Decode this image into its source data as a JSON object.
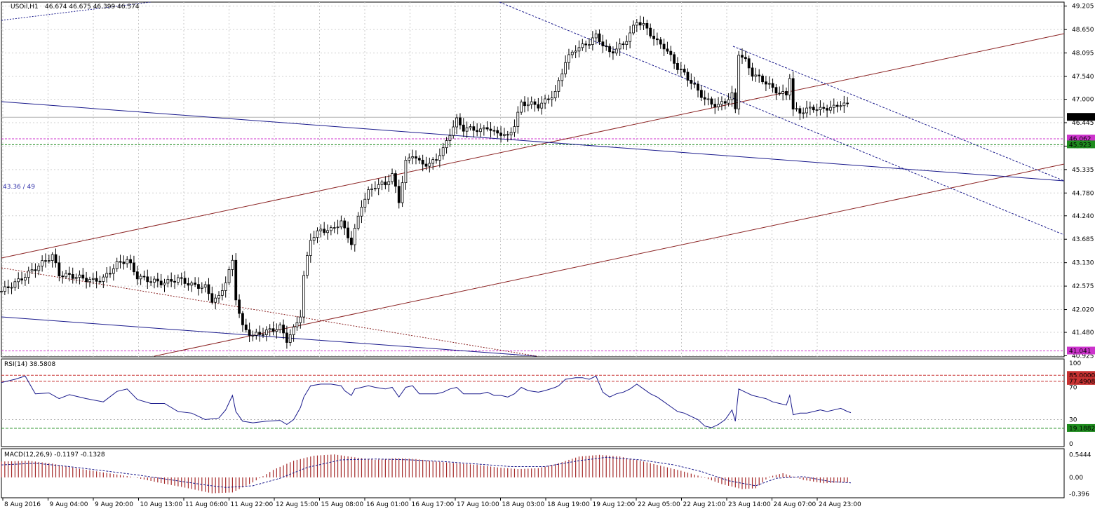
{
  "chart_data": [
    {
      "type": "candlestick",
      "symbol_label": "USOil,H1",
      "ohlc_label": "46.674 46.675 46.399 46.574",
      "annotation": "43.36 / 49",
      "ylim": [
        40.9,
        49.3
      ],
      "y_ticks": [
        "49.205",
        "48.650",
        "48.095",
        "47.540",
        "47.000",
        "46.445",
        "45.890",
        "45.335",
        "44.780",
        "44.240",
        "43.685",
        "43.130",
        "42.575",
        "42.020",
        "41.480",
        "40.925"
      ],
      "price_markers": [
        {
          "label": "46.574",
          "value": 46.574,
          "bg": "#000000"
        },
        {
          "label": "46.062",
          "value": 46.062,
          "bg": "#cc33cc"
        },
        {
          "label": "45.923",
          "value": 45.923,
          "bg": "#1e8c1e"
        },
        {
          "label": "41.041",
          "value": 41.041,
          "bg": "#cc33cc"
        }
      ],
      "x_labels": [
        "8 Aug 2016",
        "9 Aug 04:00",
        "9 Aug 20:00",
        "10 Aug 13:00",
        "11 Aug 06:00",
        "11 Aug 22:00",
        "12 Aug 15:00",
        "15 Aug 08:00",
        "16 Aug 01:00",
        "16 Aug 17:00",
        "17 Aug 10:00",
        "18 Aug 03:00",
        "18 Aug 19:00",
        "19 Aug 12:00",
        "22 Aug 05:00",
        "22 Aug 21:00",
        "23 Aug 14:00",
        "24 Aug 07:00",
        "24 Aug 23:00"
      ],
      "close_path": [
        [
          0,
          42.45
        ],
        [
          5,
          42.7
        ],
        [
          10,
          43.0
        ],
        [
          15,
          43.3
        ],
        [
          17,
          42.85
        ],
        [
          22,
          42.8
        ],
        [
          27,
          42.7
        ],
        [
          30,
          42.75
        ],
        [
          34,
          43.1
        ],
        [
          37,
          43.2
        ],
        [
          40,
          42.8
        ],
        [
          44,
          42.7
        ],
        [
          48,
          42.65
        ],
        [
          52,
          42.75
        ],
        [
          56,
          42.6
        ],
        [
          60,
          42.55
        ],
        [
          62,
          42.25
        ],
        [
          64,
          42.3
        ],
        [
          66,
          42.7
        ],
        [
          68,
          43.15
        ],
        [
          69,
          42.3
        ],
        [
          71,
          41.6
        ],
        [
          74,
          41.4
        ],
        [
          78,
          41.5
        ],
        [
          82,
          41.6
        ],
        [
          84,
          41.3
        ],
        [
          86,
          41.55
        ],
        [
          88,
          41.9
        ],
        [
          89,
          42.8
        ],
        [
          91,
          43.7
        ],
        [
          94,
          43.9
        ],
        [
          97,
          43.9
        ],
        [
          100,
          44.1
        ],
        [
          101,
          43.9
        ],
        [
          103,
          43.6
        ],
        [
          104,
          43.9
        ],
        [
          106,
          44.5
        ],
        [
          108,
          44.8
        ],
        [
          110,
          44.95
        ],
        [
          113,
          45.0
        ],
        [
          115,
          45.2
        ],
        [
          117,
          44.6
        ],
        [
          119,
          45.5
        ],
        [
          121,
          45.7
        ],
        [
          123,
          45.5
        ],
        [
          126,
          45.45
        ],
        [
          128,
          45.6
        ],
        [
          130,
          45.8
        ],
        [
          132,
          46.2
        ],
        [
          134,
          46.5
        ],
        [
          136,
          46.3
        ],
        [
          139,
          46.3
        ],
        [
          141,
          46.25
        ],
        [
          143,
          46.35
        ],
        [
          145,
          46.2
        ],
        [
          147,
          46.2
        ],
        [
          149,
          46.1
        ],
        [
          151,
          46.4
        ],
        [
          153,
          46.9
        ],
        [
          155,
          46.9
        ],
        [
          158,
          46.85
        ],
        [
          160,
          46.95
        ],
        [
          163,
          47.15
        ],
        [
          164,
          47.4
        ],
        [
          166,
          47.9
        ],
        [
          169,
          48.2
        ],
        [
          171,
          48.25
        ],
        [
          173,
          48.35
        ],
        [
          175,
          48.5
        ],
        [
          177,
          48.3
        ],
        [
          179,
          48.1
        ],
        [
          181,
          48.2
        ],
        [
          183,
          48.3
        ],
        [
          185,
          48.55
        ],
        [
          187,
          48.85
        ],
        [
          189,
          48.75
        ],
        [
          191,
          48.55
        ],
        [
          193,
          48.35
        ],
        [
          195,
          48.25
        ],
        [
          197,
          48.0
        ],
        [
          199,
          47.75
        ],
        [
          201,
          47.6
        ],
        [
          203,
          47.4
        ],
        [
          205,
          47.2
        ],
        [
          207,
          47.0
        ],
        [
          209,
          46.9
        ],
        [
          211,
          46.85
        ],
        [
          213,
          46.95
        ],
        [
          215,
          47.1
        ],
        [
          216,
          46.75
        ],
        [
          217,
          48.1
        ],
        [
          219,
          47.9
        ],
        [
          221,
          47.6
        ],
        [
          223,
          47.5
        ],
        [
          225,
          47.4
        ],
        [
          227,
          47.25
        ],
        [
          229,
          47.15
        ],
        [
          231,
          47.1
        ],
        [
          232,
          47.55
        ],
        [
          233,
          46.75
        ],
        [
          235,
          46.7
        ],
        [
          237,
          46.75
        ],
        [
          239,
          46.8
        ],
        [
          241,
          46.75
        ],
        [
          243,
          46.8
        ],
        [
          245,
          46.8
        ],
        [
          247,
          46.9
        ],
        [
          249,
          46.85
        ],
        [
          250,
          46.57
        ]
      ],
      "max_index": 250,
      "reference_values": [
        41.041,
        45.923,
        46.062
      ]
    },
    {
      "type": "line",
      "label": "RSI(14) 38.5808",
      "ylim": [
        0,
        100
      ],
      "y_ticks": [
        "100",
        "70",
        "30",
        "0"
      ],
      "levels": [
        {
          "label": "85.0000",
          "value": 85.0,
          "bg": "#c83232"
        },
        {
          "label": "77.4908",
          "value": 77.4908,
          "bg": "#c83232"
        },
        {
          "label": "19.1882",
          "value": 19.1882,
          "bg": "#1e8c1e"
        }
      ],
      "series": [
        [
          0,
          76
        ],
        [
          4,
          80
        ],
        [
          7,
          84
        ],
        [
          10,
          62
        ],
        [
          14,
          63
        ],
        [
          17,
          56
        ],
        [
          20,
          61
        ],
        [
          25,
          56
        ],
        [
          30,
          52
        ],
        [
          34,
          65
        ],
        [
          37,
          68
        ],
        [
          40,
          55
        ],
        [
          44,
          50
        ],
        [
          48,
          50
        ],
        [
          52,
          40
        ],
        [
          56,
          38
        ],
        [
          60,
          30
        ],
        [
          64,
          32
        ],
        [
          66,
          42
        ],
        [
          68,
          60
        ],
        [
          69,
          40
        ],
        [
          71,
          28
        ],
        [
          74,
          26
        ],
        [
          78,
          28
        ],
        [
          82,
          29
        ],
        [
          84,
          24
        ],
        [
          86,
          30
        ],
        [
          88,
          45
        ],
        [
          89,
          58
        ],
        [
          91,
          72
        ],
        [
          94,
          74
        ],
        [
          97,
          74
        ],
        [
          100,
          72
        ],
        [
          101,
          66
        ],
        [
          103,
          60
        ],
        [
          104,
          68
        ],
        [
          106,
          70
        ],
        [
          108,
          72
        ],
        [
          110,
          70
        ],
        [
          113,
          68
        ],
        [
          115,
          70
        ],
        [
          117,
          58
        ],
        [
          119,
          70
        ],
        [
          121,
          72
        ],
        [
          123,
          62
        ],
        [
          126,
          62
        ],
        [
          128,
          62
        ],
        [
          130,
          64
        ],
        [
          132,
          68
        ],
        [
          134,
          70
        ],
        [
          136,
          62
        ],
        [
          139,
          62
        ],
        [
          141,
          62
        ],
        [
          143,
          64
        ],
        [
          145,
          60
        ],
        [
          147,
          60
        ],
        [
          149,
          58
        ],
        [
          151,
          62
        ],
        [
          153,
          70
        ],
        [
          155,
          66
        ],
        [
          158,
          64
        ],
        [
          160,
          66
        ],
        [
          163,
          70
        ],
        [
          164,
          72
        ],
        [
          166,
          80
        ],
        [
          169,
          82
        ],
        [
          171,
          82
        ],
        [
          173,
          80
        ],
        [
          175,
          84
        ],
        [
          177,
          64
        ],
        [
          179,
          58
        ],
        [
          181,
          62
        ],
        [
          183,
          64
        ],
        [
          185,
          68
        ],
        [
          187,
          74
        ],
        [
          189,
          68
        ],
        [
          191,
          62
        ],
        [
          193,
          58
        ],
        [
          195,
          52
        ],
        [
          197,
          46
        ],
        [
          199,
          40
        ],
        [
          201,
          38
        ],
        [
          203,
          34
        ],
        [
          205,
          30
        ],
        [
          207,
          22
        ],
        [
          209,
          20
        ],
        [
          211,
          24
        ],
        [
          213,
          30
        ],
        [
          215,
          42
        ],
        [
          216,
          28
        ],
        [
          217,
          68
        ],
        [
          219,
          64
        ],
        [
          221,
          60
        ],
        [
          223,
          58
        ],
        [
          225,
          56
        ],
        [
          227,
          52
        ],
        [
          229,
          50
        ],
        [
          231,
          48
        ],
        [
          232,
          60
        ],
        [
          233,
          36
        ],
        [
          235,
          38
        ],
        [
          237,
          38
        ],
        [
          239,
          40
        ],
        [
          241,
          42
        ],
        [
          243,
          40
        ],
        [
          245,
          42
        ],
        [
          247,
          44
        ],
        [
          249,
          40
        ],
        [
          250,
          38.58
        ]
      ],
      "max_index": 250
    },
    {
      "type": "bar+line",
      "label": "MACD(12,26,9) -0.1197 -0.1328",
      "ylim": [
        -0.42,
        0.62
      ],
      "y_ticks": [
        "0.5444",
        "0.00",
        "-0.396"
      ],
      "histogram": [
        [
          0,
          0.38
        ],
        [
          8,
          0.4
        ],
        [
          15,
          0.33
        ],
        [
          22,
          0.22
        ],
        [
          30,
          0.12
        ],
        [
          38,
          0.02
        ],
        [
          46,
          -0.12
        ],
        [
          55,
          -0.26
        ],
        [
          62,
          -0.38
        ],
        [
          68,
          -0.36
        ],
        [
          74,
          -0.12
        ],
        [
          80,
          0.18
        ],
        [
          86,
          0.4
        ],
        [
          92,
          0.52
        ],
        [
          98,
          0.55
        ],
        [
          104,
          0.48
        ],
        [
          110,
          0.42
        ],
        [
          116,
          0.46
        ],
        [
          122,
          0.44
        ],
        [
          128,
          0.38
        ],
        [
          134,
          0.34
        ],
        [
          140,
          0.3
        ],
        [
          146,
          0.24
        ],
        [
          152,
          0.2
        ],
        [
          158,
          0.22
        ],
        [
          164,
          0.34
        ],
        [
          170,
          0.5
        ],
        [
          176,
          0.54
        ],
        [
          182,
          0.5
        ],
        [
          188,
          0.4
        ],
        [
          194,
          0.28
        ],
        [
          200,
          0.16
        ],
        [
          206,
          0.02
        ],
        [
          212,
          -0.16
        ],
        [
          218,
          -0.28
        ],
        [
          222,
          -0.26
        ],
        [
          226,
          0.02
        ],
        [
          230,
          0.1
        ],
        [
          236,
          -0.06
        ],
        [
          242,
          -0.14
        ],
        [
          248,
          -0.12
        ],
        [
          250,
          -0.12
        ]
      ],
      "signal": [
        [
          0,
          0.3
        ],
        [
          10,
          0.34
        ],
        [
          20,
          0.26
        ],
        [
          30,
          0.16
        ],
        [
          40,
          0.06
        ],
        [
          50,
          -0.06
        ],
        [
          60,
          -0.18
        ],
        [
          66,
          -0.24
        ],
        [
          74,
          -0.2
        ],
        [
          82,
          -0.02
        ],
        [
          90,
          0.24
        ],
        [
          100,
          0.42
        ],
        [
          110,
          0.44
        ],
        [
          120,
          0.42
        ],
        [
          130,
          0.38
        ],
        [
          140,
          0.32
        ],
        [
          150,
          0.26
        ],
        [
          160,
          0.26
        ],
        [
          170,
          0.4
        ],
        [
          178,
          0.48
        ],
        [
          188,
          0.42
        ],
        [
          198,
          0.3
        ],
        [
          206,
          0.14
        ],
        [
          214,
          -0.08
        ],
        [
          222,
          -0.2
        ],
        [
          228,
          -0.02
        ],
        [
          236,
          0.02
        ],
        [
          244,
          -0.1
        ],
        [
          250,
          -0.13
        ]
      ],
      "max_index": 250
    }
  ]
}
